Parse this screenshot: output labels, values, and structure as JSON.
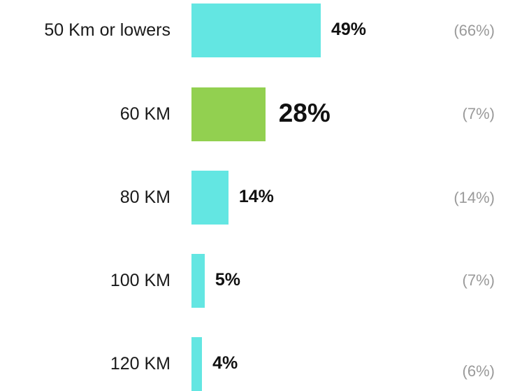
{
  "chart_data": {
    "type": "bar",
    "orientation": "horizontal",
    "categories": [
      "50 Km or lowers",
      "60 KM",
      "80 KM",
      "100 KM",
      "120 KM"
    ],
    "values": [
      49,
      28,
      14,
      5,
      4
    ],
    "value_labels": [
      "49%",
      "28%",
      "14%",
      "5%",
      "4%"
    ],
    "comparison_labels": [
      "(66%)",
      "(7%)",
      "(14%)",
      "(7%)",
      "(6%)"
    ],
    "highlight_index": 1,
    "colors": {
      "default": "#63e6e2",
      "highlight": "#92d050",
      "comparison_text": "#9a9a9a"
    },
    "xlim": [
      0,
      49
    ]
  }
}
